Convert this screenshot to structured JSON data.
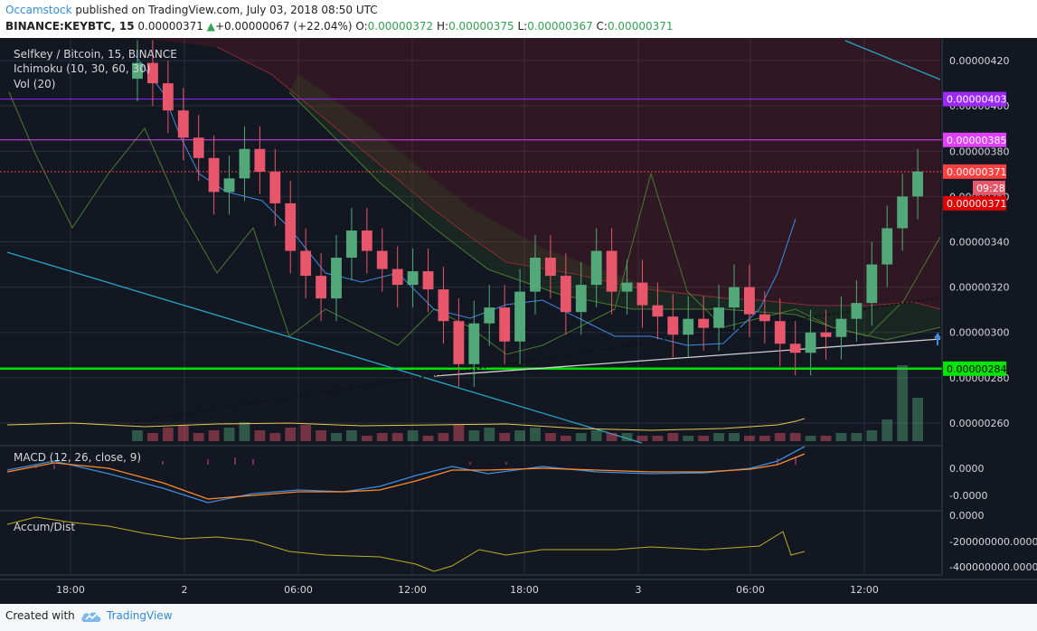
{
  "header": {
    "author": "Occamstock",
    "published_text": "published on TradingView.com, July 03, 2018 08:50 UTC",
    "symbol": "BINANCE:KEYBTC, 15",
    "last": "0.00000371",
    "arrow": "▲",
    "change": "+0.00000067 (+22.04%)",
    "o_label": "O:",
    "o_value": "0.00000372",
    "h_label": "H:",
    "h_value": "0.00000375",
    "l_label": "L:",
    "l_value": "0.00000367",
    "c_label": "C:",
    "c_value": "0.00000371"
  },
  "legend": {
    "title": "Selfkey / Bitcoin, 15, BINANCE",
    "ichimoku": "Ichimoku (10, 30, 60, 30)",
    "vol": "Vol (20)",
    "macd": "MACD (12, 26, close, 9)",
    "accum": "Accum/Dist"
  },
  "chart_data": {
    "type": "candlestick",
    "symbol": "KEYBTC",
    "exchange": "BINANCE",
    "interval": "15",
    "price_axis": {
      "ticks": [
        "0.00000420",
        "0.00000400",
        "0.00000380",
        "0.00000360",
        "0.00000340",
        "0.00000320",
        "0.00000300",
        "0.00000280",
        "0.00000260"
      ],
      "range": [
        2.5e-06,
        4.3e-06
      ]
    },
    "time_axis": {
      "ticks": [
        "18:00",
        "2",
        "06:00",
        "12:00",
        "18:00",
        "3",
        "06:00",
        "12:00"
      ]
    },
    "macd_axis": {
      "ticks": [
        "0.0000",
        "-0.0000"
      ]
    },
    "accum_axis": {
      "ticks": [
        "0.0000",
        "-200000000.0000",
        "-400000000.0000"
      ]
    },
    "levels": [
      {
        "value": 4.03e-06,
        "label": "0.00000403",
        "color": "#9c27ff",
        "style": "solid"
      },
      {
        "value": 3.85e-06,
        "label": "0.00000385",
        "color": "#e040fb",
        "style": "solid"
      },
      {
        "value": 3.71e-06,
        "label": "0.00000371",
        "color": "#ff4040",
        "style": "dotted"
      },
      {
        "value": 2.84e-06,
        "label": "0.00000284",
        "color": "#00e600",
        "style": "solid"
      }
    ],
    "last_price": "0.00000371",
    "countdown": "09:28",
    "close": [
      4.19e-06,
      4.1e-06,
      3.98e-06,
      3.86e-06,
      3.77e-06,
      3.62e-06,
      3.68e-06,
      3.81e-06,
      3.71e-06,
      3.57e-06,
      3.36e-06,
      3.25e-06,
      3.15e-06,
      3.33e-06,
      3.45e-06,
      3.36e-06,
      3.28e-06,
      3.21e-06,
      3.27e-06,
      3.19e-06,
      3.05e-06,
      2.86e-06,
      3.04e-06,
      3.11e-06,
      2.96e-06,
      3.18e-06,
      3.33e-06,
      3.25e-06,
      3.09e-06,
      3.21e-06,
      3.36e-06,
      3.18e-06,
      3.22e-06,
      3.12e-06,
      3.07e-06,
      2.99e-06,
      3.06e-06,
      3.02e-06,
      3.11e-06,
      3.2e-06,
      3.08e-06,
      3.05e-06,
      2.95e-06,
      2.91e-06,
      3e-06,
      2.98e-06,
      3.06e-06,
      3.13e-06,
      3.3e-06,
      3.46e-06,
      3.6e-06,
      3.71e-06
    ],
    "volume": [
      4,
      3,
      5,
      6,
      3,
      4,
      5,
      7,
      4,
      3,
      5,
      6,
      4,
      3,
      4,
      2,
      3,
      3,
      4,
      2,
      3,
      6,
      4,
      5,
      3,
      4,
      5,
      3,
      2,
      3,
      4,
      3,
      3,
      2,
      2,
      3,
      2,
      2,
      3,
      3,
      2,
      2,
      3,
      3,
      2,
      2,
      3,
      3,
      4,
      8,
      28,
      16
    ]
  },
  "footer": {
    "created": "Created with",
    "brand": "TradingView"
  },
  "colors": {
    "background": "#131722",
    "up": "#52a878",
    "down": "#e8566b",
    "grid": "#2a2e39"
  }
}
